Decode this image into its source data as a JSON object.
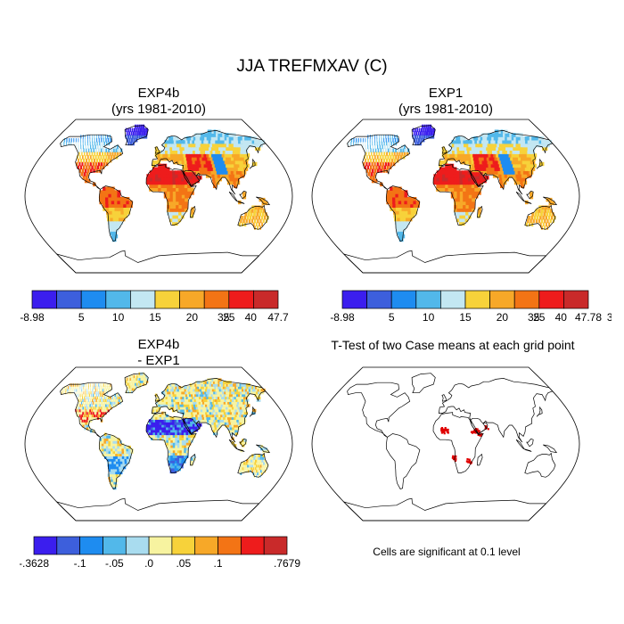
{
  "figure": {
    "title": "JJA TREFMXAV (C)",
    "note": "Cells are significant at 0.1 level"
  },
  "chart_data": [
    {
      "type": "heatmap",
      "title": "EXP4b",
      "subtitle": "(yrs 1981-2010)",
      "projection": "robinson",
      "colorbar": {
        "labels": [
          "-8.98",
          "5",
          "10",
          "15",
          "20",
          "25",
          "30",
          "35",
          "40",
          "47.7"
        ],
        "colors": [
          "#3b1eee",
          "#3d5fdc",
          "#1e8cf0",
          "#52b8ea",
          "#c3e7f2",
          "#f7d23a",
          "#f7a828",
          "#f37415",
          "#ee1c1c",
          "#c92a2a"
        ]
      }
    },
    {
      "type": "heatmap",
      "title": "EXP1",
      "subtitle": "(yrs 1981-2010)",
      "projection": "robinson",
      "colorbar": {
        "labels": [
          "-8.98",
          "5",
          "10",
          "15",
          "20",
          "25",
          "30",
          "35",
          "40",
          "47.78"
        ],
        "colors": [
          "#3b1eee",
          "#3d5fdc",
          "#1e8cf0",
          "#52b8ea",
          "#c3e7f2",
          "#f7d23a",
          "#f7a828",
          "#f37415",
          "#ee1c1c",
          "#c92a2a"
        ]
      }
    },
    {
      "type": "heatmap",
      "title": "EXP4b",
      "subtitle": "- EXP1",
      "projection": "robinson",
      "colorbar": {
        "labels": [
          "-.3628",
          "-.1",
          "-.05",
          ".0",
          ".05",
          ".1",
          ".7679"
        ],
        "colors": [
          "#3b1eee",
          "#3d5fdc",
          "#1e8cf0",
          "#52b8ea",
          "#a9dcef",
          "#f7f3a0",
          "#f7d23a",
          "#f7a828",
          "#f37415",
          "#ee1c1c",
          "#c92a2a"
        ]
      }
    },
    {
      "type": "heatmap",
      "title": "T-Test of two Case means at each grid point",
      "projection": "robinson",
      "significant_color": "#e00000"
    }
  ]
}
